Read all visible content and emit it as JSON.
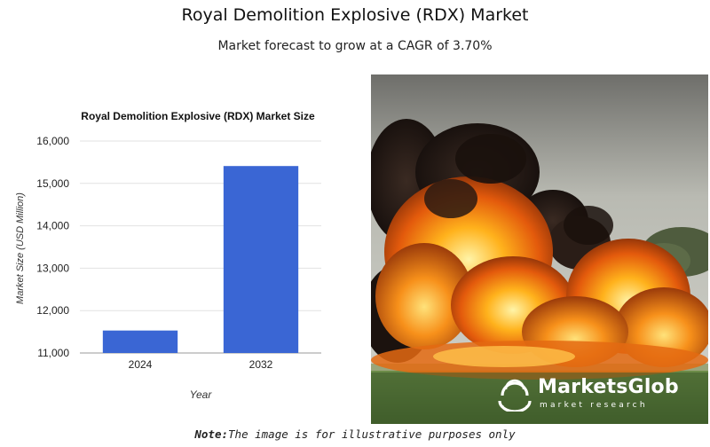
{
  "header": {
    "title": "Royal Demolition Explosive (RDX) Market",
    "subtitle": "Market forecast to grow at a CAGR of 3.70%"
  },
  "chart_data": {
    "type": "bar",
    "title": "Royal Demolition Explosive (RDX) Market Size",
    "xlabel": "Year",
    "ylabel": "Market Size (USD Million)",
    "categories": [
      "2024",
      "2032"
    ],
    "values": [
      11530,
      15410
    ],
    "ylim": [
      11000,
      16000
    ],
    "yticks": [
      11000,
      12000,
      13000,
      14000,
      15000,
      16000
    ],
    "ytick_labels": [
      "11,000",
      "12,000",
      "13,000",
      "14,000",
      "15,000",
      "16,000"
    ],
    "bar_color": "#3a66d4",
    "grid": true,
    "legend": "none"
  },
  "image": {
    "subject": "explosion-photo"
  },
  "logo": {
    "name": "MarketsGlob",
    "tagline": "market research"
  },
  "note": {
    "label": "Note:",
    "text": "The image is for illustrative purposes only"
  }
}
